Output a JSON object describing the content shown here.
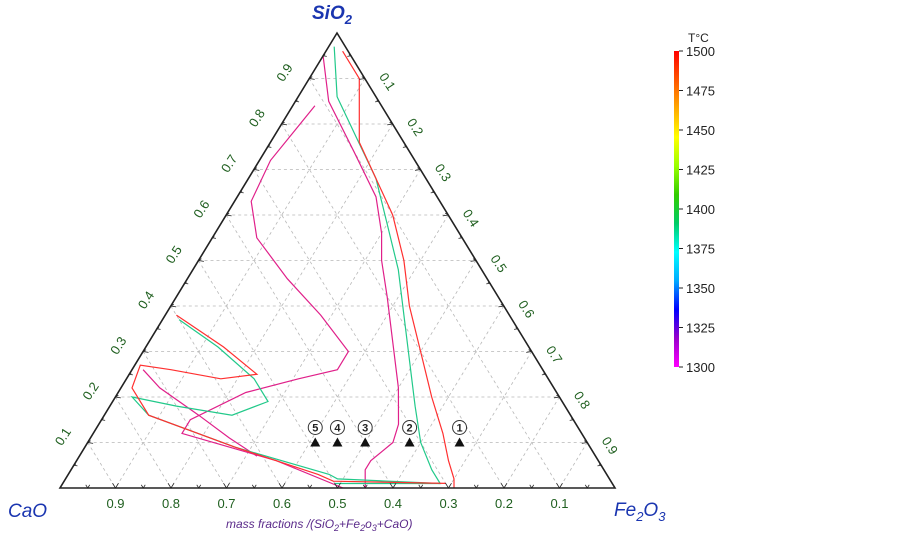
{
  "chart_data": {
    "type": "ternary",
    "corners": {
      "top": "SiO2",
      "left": "CaO",
      "right": "Fe2O3"
    },
    "corner_labels": {
      "top_main": "SiO",
      "top_sub": "2",
      "left": "CaO",
      "right_main": "Fe",
      "right_sub1": "2",
      "right_mid": "O",
      "right_sub2": "3"
    },
    "axis_title": {
      "prefix": "mass fractions /(SiO",
      "sub1": "2",
      "mid1": "+Fe",
      "sub2": "2",
      "mid2": "o",
      "sub3": "3",
      "suffix": "+CaO)"
    },
    "tick_values": [
      0.1,
      0.2,
      0.3,
      0.4,
      0.5,
      0.6,
      0.7,
      0.8,
      0.9
    ],
    "left_side_ticks": [
      "0.1",
      "0.2",
      "0.3",
      "0.4",
      "0.5",
      "0.6",
      "0.7",
      "0.8",
      "0.9"
    ],
    "right_side_ticks": [
      "0.1",
      "0.2",
      "0.3",
      "0.4",
      "0.5",
      "0.6",
      "0.7",
      "0.8",
      "0.9"
    ],
    "bottom_ticks": [
      "0.9",
      "0.8",
      "0.7",
      "0.6",
      "0.5",
      "0.4",
      "0.3",
      "0.2",
      "0.1"
    ],
    "grid": true,
    "colorbar": {
      "title": "T°C",
      "min": 1300,
      "max": 1500,
      "ticks": [
        "1500",
        "1475",
        "1450",
        "1425",
        "1400",
        "1375",
        "1350",
        "1325",
        "1300"
      ],
      "colors": [
        "#ff00ff",
        "#9900cc",
        "#0000ff",
        "#00aaff",
        "#00ffff",
        "#00cc66",
        "#33cc00",
        "#99ff00",
        "#ffff00",
        "#ffaa00",
        "#ff5500",
        "#ff0000"
      ]
    },
    "isotherms": [
      {
        "temperature": 1300,
        "color": "#e0208a",
        "points": [
          [
            0.95,
            0.05,
            0.0
          ],
          [
            0.85,
            0.09,
            0.06
          ],
          [
            0.74,
            0.1,
            0.16
          ],
          [
            0.64,
            0.11,
            0.25
          ],
          [
            0.56,
            0.14,
            0.3
          ],
          [
            0.5,
            0.17,
            0.33
          ],
          [
            0.42,
            0.2,
            0.38
          ],
          [
            0.32,
            0.24,
            0.44
          ],
          [
            0.22,
            0.28,
            0.5
          ],
          [
            0.14,
            0.32,
            0.54
          ],
          [
            0.1,
            0.35,
            0.55
          ],
          [
            0.08,
            0.38,
            0.54
          ],
          [
            0.06,
            0.41,
            0.53
          ],
          [
            0.04,
            0.43,
            0.53
          ],
          [
            0.02,
            0.44,
            0.54
          ],
          [
            0.0,
            0.45,
            0.55
          ]
        ]
      },
      {
        "temperature": 1300,
        "color": "#e0208a",
        "points": [
          [
            0.84,
            0.12,
            0.04
          ],
          [
            0.72,
            0.26,
            0.02
          ],
          [
            0.63,
            0.34,
            0.03
          ],
          [
            0.55,
            0.37,
            0.08
          ],
          [
            0.46,
            0.36,
            0.18
          ],
          [
            0.38,
            0.34,
            0.28
          ],
          [
            0.3,
            0.33,
            0.37
          ],
          [
            0.26,
            0.37,
            0.37
          ],
          [
            0.24,
            0.45,
            0.31
          ],
          [
            0.21,
            0.56,
            0.23
          ],
          [
            0.15,
            0.69,
            0.16
          ],
          [
            0.12,
            0.72,
            0.16
          ],
          [
            0.06,
            0.58,
            0.36
          ],
          [
            0.0,
            0.49,
            0.51
          ]
        ]
      },
      {
        "temperature": 1300,
        "color": "#e0208a",
        "points": [
          [
            0.26,
            0.72,
            0.02
          ],
          [
            0.22,
            0.71,
            0.07
          ],
          [
            0.16,
            0.67,
            0.17
          ],
          [
            0.11,
            0.64,
            0.25
          ],
          [
            0.07,
            0.61,
            0.32
          ]
        ]
      },
      {
        "temperature": 1400,
        "color": "#22c98a",
        "points": [
          [
            0.97,
            0.02,
            0.01
          ],
          [
            0.86,
            0.07,
            0.07
          ],
          [
            0.77,
            0.08,
            0.15
          ],
          [
            0.68,
            0.09,
            0.23
          ],
          [
            0.58,
            0.12,
            0.3
          ],
          [
            0.48,
            0.15,
            0.37
          ],
          [
            0.38,
            0.19,
            0.43
          ],
          [
            0.28,
            0.23,
            0.49
          ],
          [
            0.18,
            0.27,
            0.55
          ],
          [
            0.1,
            0.3,
            0.6
          ],
          [
            0.04,
            0.31,
            0.65
          ],
          [
            0.01,
            0.31,
            0.68
          ],
          [
            0.01,
            0.5,
            0.49
          ]
        ]
      },
      {
        "temperature": 1400,
        "color": "#22c98a",
        "points": [
          [
            0.37,
            0.6,
            0.03
          ],
          [
            0.31,
            0.56,
            0.13
          ],
          [
            0.24,
            0.53,
            0.23
          ],
          [
            0.19,
            0.53,
            0.28
          ],
          [
            0.16,
            0.61,
            0.23
          ],
          [
            0.18,
            0.7,
            0.12
          ],
          [
            0.2,
            0.77,
            0.03
          ],
          [
            0.16,
            0.76,
            0.08
          ],
          [
            0.09,
            0.64,
            0.27
          ],
          [
            0.03,
            0.5,
            0.47
          ],
          [
            0.02,
            0.49,
            0.49
          ],
          [
            0.01,
            0.31,
            0.68
          ]
        ]
      },
      {
        "temperature": 1500,
        "color": "#ff3030",
        "points": [
          [
            0.96,
            0.01,
            0.03
          ],
          [
            0.9,
            0.01,
            0.09
          ],
          [
            0.84,
            0.04,
            0.12
          ],
          [
            0.76,
            0.08,
            0.16
          ],
          [
            0.68,
            0.09,
            0.23
          ],
          [
            0.6,
            0.1,
            0.3
          ],
          [
            0.5,
            0.13,
            0.37
          ],
          [
            0.4,
            0.17,
            0.43
          ],
          [
            0.3,
            0.2,
            0.5
          ],
          [
            0.2,
            0.23,
            0.57
          ],
          [
            0.12,
            0.25,
            0.63
          ],
          [
            0.06,
            0.27,
            0.67
          ],
          [
            0.02,
            0.28,
            0.7
          ],
          [
            0.0,
            0.29,
            0.71
          ]
        ]
      },
      {
        "temperature": 1500,
        "color": "#ff3030",
        "points": [
          [
            0.38,
            0.6,
            0.02
          ],
          [
            0.31,
            0.55,
            0.14
          ],
          [
            0.25,
            0.52,
            0.23
          ],
          [
            0.24,
            0.59,
            0.17
          ],
          [
            0.26,
            0.67,
            0.07
          ],
          [
            0.27,
            0.72,
            0.01
          ],
          [
            0.22,
            0.76,
            0.02
          ],
          [
            0.16,
            0.76,
            0.08
          ],
          [
            0.09,
            0.64,
            0.27
          ],
          [
            0.03,
            0.52,
            0.45
          ],
          [
            0.015,
            0.5,
            0.485
          ],
          [
            0.01,
            0.3,
            0.69
          ]
        ]
      }
    ],
    "sample_points": [
      {
        "label": "1",
        "composition": [
          0.1,
          0.23,
          0.67
        ]
      },
      {
        "label": "2",
        "composition": [
          0.1,
          0.32,
          0.58
        ]
      },
      {
        "label": "3",
        "composition": [
          0.1,
          0.4,
          0.5
        ]
      },
      {
        "label": "4",
        "composition": [
          0.1,
          0.45,
          0.45
        ]
      },
      {
        "label": "5",
        "composition": [
          0.1,
          0.49,
          0.41
        ]
      }
    ]
  }
}
